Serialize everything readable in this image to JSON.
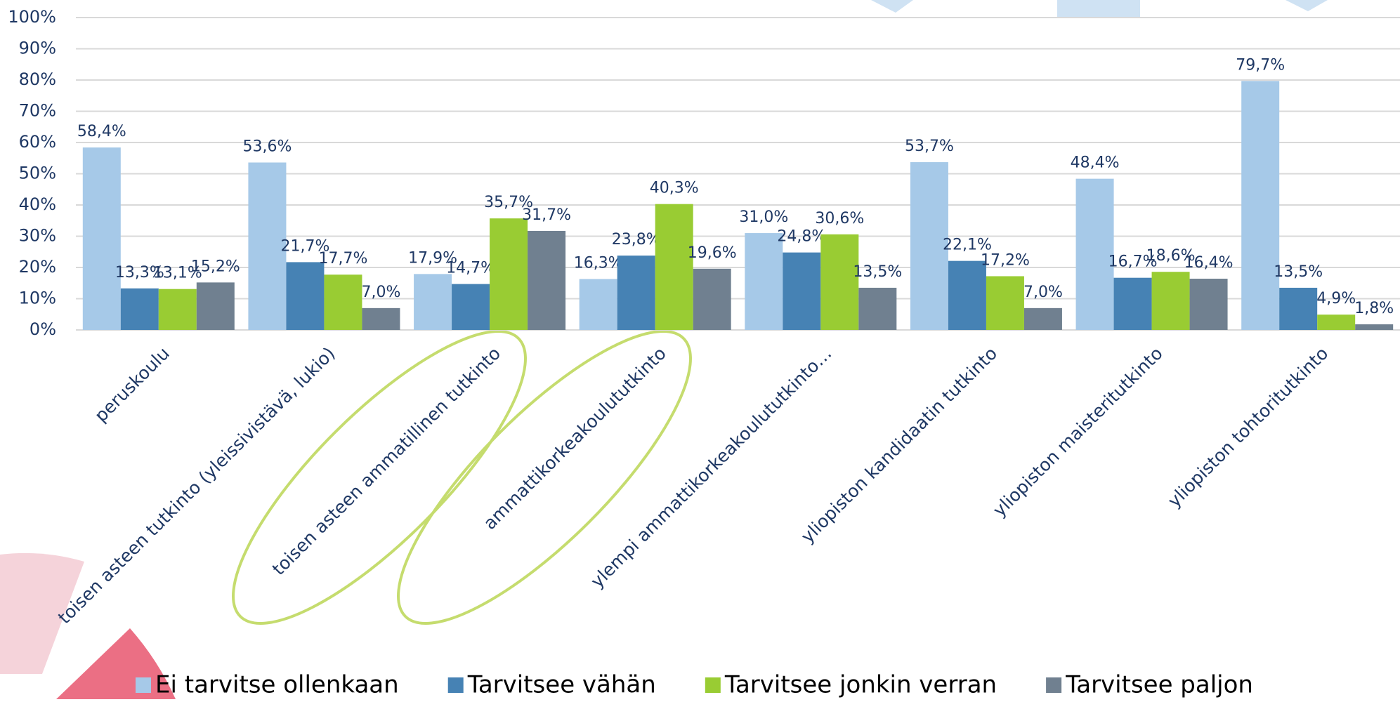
{
  "chart_data": {
    "type": "bar",
    "categories": [
      "peruskoulu",
      "toisen asteen tutkinto (yleissivistävä, lukio)",
      "toisen asteen ammatillinen tutkinto",
      "ammattikorkeakoulututkinto",
      "ylempi ammattikorkeakoulututkinto…",
      "yliopiston kandidaatin tutkinto",
      "yliopiston maisteritutkinto",
      "yliopiston tohtoritutkinto"
    ],
    "series": [
      {
        "name": "Ei tarvitse ollenkaan",
        "color": "#a6c9e8",
        "values": [
          58.4,
          53.6,
          17.9,
          16.3,
          31.0,
          53.7,
          48.4,
          79.7
        ],
        "value_labels": [
          "58,4%",
          "53,6%",
          "17,9%",
          "16,3%",
          "31,0%",
          "53,7%",
          "48,4%",
          "79,7%"
        ]
      },
      {
        "name": "Tarvitsee vähän",
        "color": "#4682b4",
        "values": [
          13.3,
          21.7,
          14.7,
          23.8,
          24.8,
          22.1,
          16.7,
          13.5
        ],
        "value_labels": [
          "13,3%",
          "21,7%",
          "14,7%",
          "23,8%",
          "24,8%",
          "22,1%",
          "16,7%",
          "13,5%"
        ]
      },
      {
        "name": "Tarvitsee jonkin verran",
        "color": "#99cc33",
        "values": [
          13.1,
          17.7,
          35.7,
          40.3,
          30.6,
          17.2,
          18.6,
          4.9
        ],
        "value_labels": [
          "13,1%",
          "17,7%",
          "35,7%",
          "40,3%",
          "30,6%",
          "17,2%",
          "18,6%",
          "4,9%"
        ]
      },
      {
        "name": "Tarvitsee paljon",
        "color": "#708090",
        "values": [
          15.2,
          7.0,
          31.7,
          19.6,
          13.5,
          7.0,
          16.4,
          1.8
        ],
        "value_labels": [
          "15,2%",
          "7,0%",
          "31,7%",
          "19,6%",
          "13,5%",
          "7,0%",
          "16,4%",
          "1,8%"
        ]
      }
    ],
    "ylim": [
      0,
      100
    ],
    "yticks": [
      {
        "value": 0,
        "label": "0%"
      },
      {
        "value": 10,
        "label": "10%"
      },
      {
        "value": 20,
        "label": "20%"
      },
      {
        "value": 30,
        "label": "30%"
      },
      {
        "value": 40,
        "label": "40%"
      },
      {
        "value": 50,
        "label": "50%"
      },
      {
        "value": 60,
        "label": "60%"
      },
      {
        "value": 70,
        "label": "70%"
      },
      {
        "value": 80,
        "label": "80%"
      },
      {
        "value": 90,
        "label": "90%"
      },
      {
        "value": 100,
        "label": "100%"
      }
    ],
    "grid": true,
    "legend": "bottom"
  }
}
